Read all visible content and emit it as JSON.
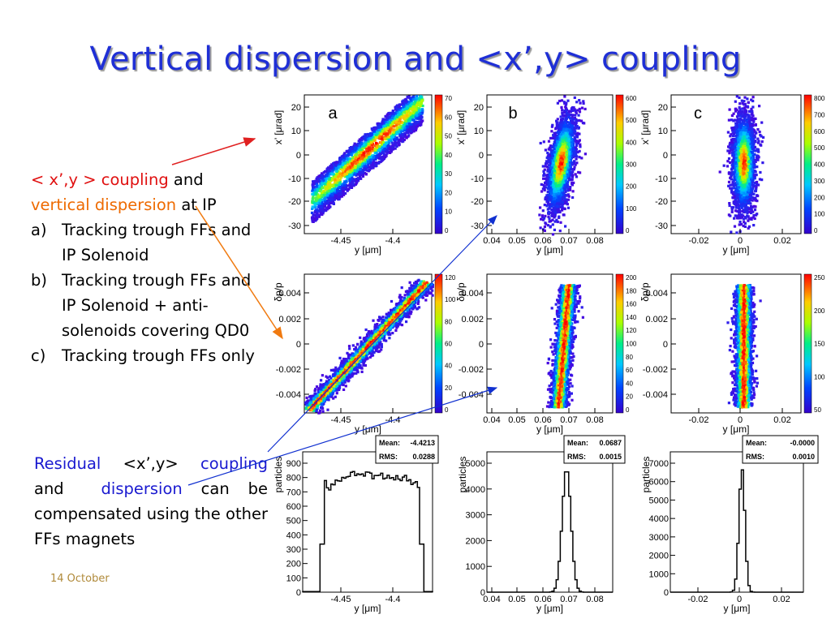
{
  "title": "Vertical dispersion and <x’,y> coupling",
  "left": {
    "line1_coupling": "< x’,y > coupling",
    "line1_and": " and",
    "line2_dispersion": "vertical dispersion",
    "line2_at_ip": " at IP",
    "items": [
      {
        "label": "a)",
        "text": "Tracking trough FFs and IP Solenoid"
      },
      {
        "label": "b)",
        "text": "Tracking trough FFs and IP Solenoid + anti-solenoids covering QD0"
      },
      {
        "label": "c)",
        "text": "Tracking trough FFs only"
      }
    ]
  },
  "residual": {
    "w1": "Residual",
    "w2": "<x’,y>",
    "w3": "coupling",
    "w4": "and",
    "w5": "dispersion",
    "rest": "can be compensated using the other FFs magnets"
  },
  "footer": "14 October",
  "panels": {
    "labels": [
      "a",
      "b",
      "c"
    ],
    "row1_ylabel": "x’ [μrad]",
    "row2_ylabel": "δp/p",
    "row3_ylabel": "particles",
    "xlabel": "y [μm]",
    "x_ticks": [
      [
        "-4.45",
        "-4.4"
      ],
      [
        "0.04",
        "0.05",
        "0.06",
        "0.07",
        "0.08"
      ],
      [
        "-0.02",
        "0",
        "0.02"
      ]
    ],
    "row1_yticks": [
      [
        "20",
        "10",
        "0",
        "-10",
        "-20",
        "-30"
      ],
      [
        "20",
        "10",
        "0",
        "-10",
        "-20",
        "-30"
      ],
      [
        "20",
        "10",
        "0",
        "-10",
        "-20",
        "-30"
      ]
    ],
    "row2_yticks": [
      "0.004",
      "0.002",
      "0",
      "-0.002",
      "-0.004"
    ],
    "row3_yticks": [
      [
        "900",
        "800",
        "700",
        "600",
        "500",
        "400",
        "300",
        "200",
        "100",
        "0"
      ],
      [
        "5000",
        "4000",
        "3000",
        "2000",
        "1000",
        "0"
      ],
      [
        "7000",
        "6000",
        "5000",
        "4000",
        "3000",
        "2000",
        "1000",
        "0"
      ]
    ],
    "colorbars": {
      "r1": [
        [
          "70",
          "60",
          "50",
          "40",
          "30",
          "20",
          "10",
          "0"
        ],
        [
          "600",
          "500",
          "400",
          "300",
          "200",
          "100",
          "0"
        ],
        [
          "800",
          "700",
          "600",
          "500",
          "400",
          "300",
          "200",
          "100",
          "0"
        ]
      ],
      "r2": [
        [
          "120",
          "100",
          "80",
          "60",
          "40",
          "20",
          "0"
        ],
        [
          "200",
          "180",
          "160",
          "140",
          "120",
          "100",
          "80",
          "60",
          "40",
          "20",
          "0"
        ],
        [
          "250",
          "200",
          "150",
          "100",
          "50"
        ]
      ]
    },
    "stats": [
      {
        "mean_label": "Mean:",
        "mean": "-4.4213",
        "rms_label": "RMS:",
        "rms": "0.0288"
      },
      {
        "mean_label": "Mean:",
        "mean": "0.0687",
        "rms_label": "RMS:",
        "rms": "0.0015"
      },
      {
        "mean_label": "Mean:",
        "mean": "-0.0000",
        "rms_label": "RMS:",
        "rms": "0.0010"
      }
    ]
  },
  "colors": {
    "title": "#1f2fd6",
    "coupling_red": "#e01010",
    "dispersion_orange": "#ee6a00",
    "residual_blue": "#1a1ad0",
    "arrow_red": "#e02020",
    "arrow_orange": "#f07a10",
    "arrow_blue": "#1030d0"
  }
}
